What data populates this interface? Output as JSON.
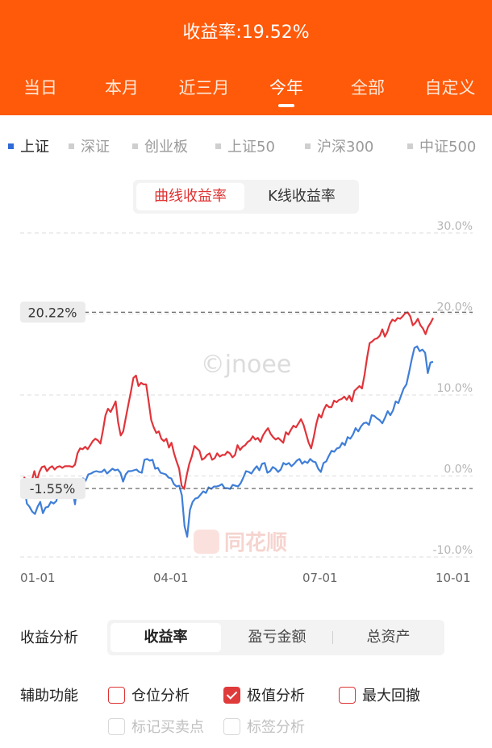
{
  "header": {
    "title": "收益率:19.52%",
    "periods": [
      "当日",
      "本月",
      "近三月",
      "今年",
      "全部",
      "自定义"
    ],
    "active_period": "今年"
  },
  "index_tabs": [
    "上证",
    "深证",
    "创业板",
    "上证50",
    "沪深300",
    "中证500"
  ],
  "active_index": "上证",
  "chart_toggle": {
    "options": [
      "曲线收益率",
      "K线收益率"
    ],
    "active": "曲线收益率"
  },
  "chart_data": {
    "type": "line",
    "watermark": "©jnoee",
    "logo_text": "同花顺",
    "y_ticks": [
      "30.0%",
      "20.0%",
      "10.0%",
      "0.0%",
      "-10.0%"
    ],
    "ylim": [
      -10,
      30
    ],
    "x_ticks": [
      "01-01",
      "04-01",
      "07-01",
      "10-01"
    ],
    "max_label": "20.22%",
    "max_value": 20.22,
    "min_label": "-1.55%",
    "min_value": -1.55,
    "series": [
      {
        "color": "#e0343a",
        "values": [
          -0.1,
          -1.3,
          -0.5,
          -0.6,
          0.6,
          -0.6,
          0.5,
          1.1,
          1.2,
          0.6,
          1.0,
          1.2,
          0.8,
          1.1,
          1.2,
          1.0,
          1.2,
          1.2,
          1.2,
          1.1,
          1.4,
          2.8,
          3.4,
          3.3,
          3.6,
          3.3,
          3.8,
          4.3,
          4.6,
          4.4,
          4.0,
          5.6,
          7.5,
          8.3,
          7.9,
          8.5,
          9.2,
          6.6,
          5.0,
          5.5,
          7.2,
          8.8,
          10.4,
          12.1,
          12.4,
          11.1,
          11.5,
          11.3,
          11.3,
          9.2,
          6.9,
          6.0,
          5.3,
          5.5,
          4.6,
          4.3,
          4.6,
          3.5,
          4.1,
          2.8,
          1.8,
          0.9,
          -1.2,
          -1.6,
          0.1,
          1.5,
          2.4,
          3.7,
          3.4,
          3.1,
          2.0,
          2.2,
          2.6,
          2.8,
          2.0,
          2.2,
          2.8,
          2.4,
          2.6,
          2.6,
          3.0,
          2.8,
          2.3,
          2.6,
          3.8,
          3.2,
          3.6,
          3.8,
          4.2,
          4.4,
          4.9,
          4.5,
          4.7,
          4.2,
          5.0,
          5.5,
          5.9,
          5.2,
          4.8,
          4.5,
          4.7,
          4.4,
          4.1,
          5.4,
          5.1,
          5.7,
          6.2,
          6.0,
          6.5,
          7.0,
          6.3,
          5.2,
          4.1,
          3.4,
          4.8,
          6.4,
          7.6,
          7.2,
          8.2,
          8.8,
          8.5,
          8.5,
          9.3,
          9.1,
          9.4,
          9.5,
          9.8,
          9.4,
          9.9,
          9.2,
          10.5,
          10.8,
          11.1,
          10.8,
          12.5,
          14.6,
          16.4,
          16.6,
          16.9,
          17.0,
          17.3,
          18.1,
          17.2,
          17.8,
          18.8,
          19.3,
          19.1,
          19.5,
          19.4,
          19.7,
          20.1,
          20.2,
          19.7,
          18.6,
          18.9,
          19.4,
          18.6,
          18.2,
          17.5,
          18.4,
          18.9,
          19.5
        ]
      },
      {
        "color": "#3f7ed8",
        "values": [
          -1.2,
          -3.4,
          -3.8,
          -4.4,
          -4.7,
          -3.8,
          -3.2,
          -4.6,
          -3.9,
          -3.8,
          -3.2,
          -3.4,
          -3.1,
          -1.7,
          -1.4,
          -2.2,
          -1.9,
          -1.5,
          -1.5,
          -3.5,
          -0.5,
          -1.6,
          -0.3,
          -0.6,
          0.2,
          0.3,
          0.5,
          0.6,
          0.5,
          0.5,
          0.8,
          0.3,
          0.6,
          0.9,
          0.7,
          0.8,
          0.4,
          -0.7,
          0.2,
          0.6,
          0.6,
          0.7,
          0.8,
          0.5,
          0.4,
          2.0,
          2.1,
          1.9,
          2.0,
          0.9,
          1.0,
          0.4,
          0.3,
          0.2,
          -0.2,
          -0.3,
          -1.0,
          -1.3,
          -1.2,
          -2.4,
          -6.2,
          -7.5,
          -4.2,
          -3.2,
          -2.8,
          -2.7,
          -2.3,
          -1.9,
          -2.1,
          -1.4,
          -1.6,
          -1.3,
          -1.3,
          -1.2,
          -1.0,
          -1.5,
          -1.5,
          -1.6,
          -1.1,
          -1.2,
          -1.3,
          -0.9,
          -0.2,
          0.6,
          0.5,
          0.3,
          0.8,
          1.2,
          0.7,
          1.5,
          1.6,
          0.4,
          0.6,
          1.1,
          0.9,
          0.5,
          0.8,
          1.6,
          1.4,
          1.6,
          1.2,
          1.5,
          1.9,
          2.1,
          1.5,
          1.8,
          1.6,
          2.1,
          1.8,
          1.7,
          0.9,
          0.5,
          1.6,
          1.8,
          2.5,
          3.1,
          3.0,
          3.4,
          3.5,
          4.1,
          3.8,
          4.8,
          4.6,
          5.1,
          5.9,
          5.5,
          6.1,
          6.5,
          6.6,
          6.3,
          7.5,
          7.4,
          7.1,
          6.9,
          6.5,
          7.2,
          8.0,
          7.5,
          8.1,
          9.2,
          9.0,
          9.9,
          10.8,
          11.3,
          12.8,
          14.4,
          15.8,
          16.0,
          15.4,
          15.6,
          15.2,
          12.7,
          14.0,
          14.1
        ]
      }
    ]
  },
  "analysis": {
    "label": "收益分析",
    "options": [
      "收益率",
      "盈亏金额",
      "总资产"
    ],
    "active": "收益率"
  },
  "aux": {
    "label": "辅助功能",
    "row1": [
      {
        "label": "仓位分析",
        "checked": false
      },
      {
        "label": "极值分析",
        "checked": true
      },
      {
        "label": "最大回撤",
        "checked": false
      }
    ],
    "row2": [
      {
        "label": "标记买卖点",
        "disabled": true
      },
      {
        "label": "标签分析",
        "disabled": true
      }
    ]
  }
}
